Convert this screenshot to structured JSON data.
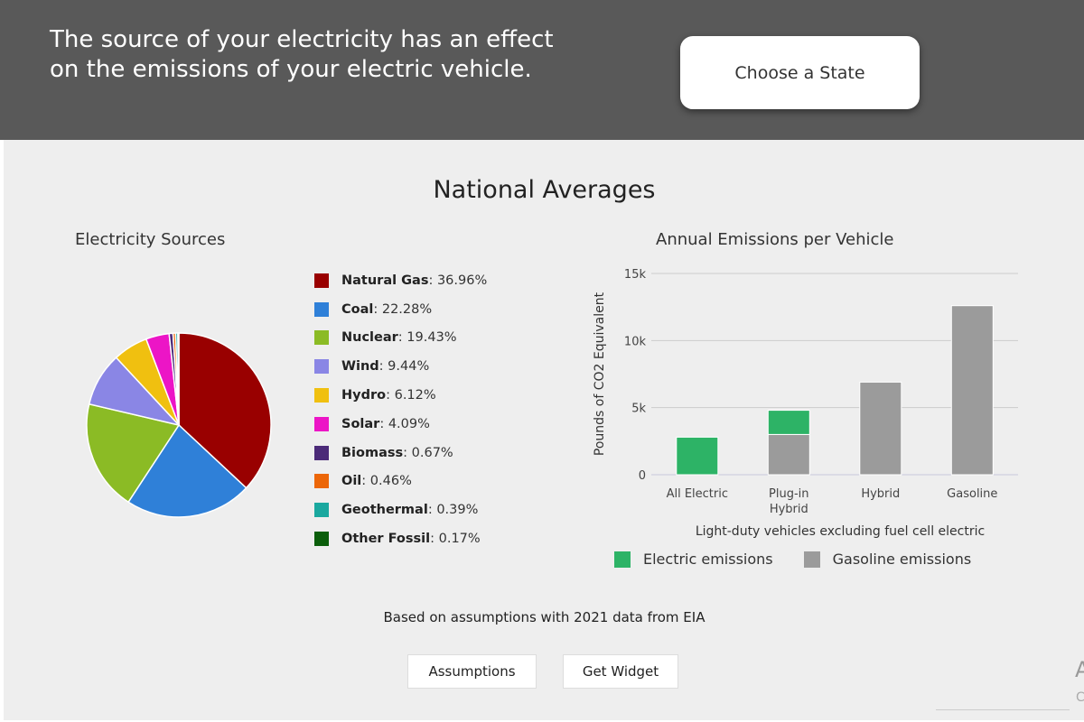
{
  "header": {
    "headline": "The source of your electricity has an effect on the emissions of your electric vehicle.",
    "choose_state_label": "Choose a State"
  },
  "main": {
    "title": "National Averages",
    "source_note": "Based on assumptions with 2021 data from EIA",
    "buttons": {
      "assumptions": "Assumptions",
      "get_widget": "Get Widget"
    }
  },
  "edge_fragments": {
    "letter_a": "A",
    "letter_c": "C"
  },
  "chart_data": [
    {
      "type": "pie",
      "title": "Electricity Sources",
      "slices": [
        {
          "label": "Natural Gas",
          "value": 36.96,
          "display": "36.96%",
          "color": "#990000"
        },
        {
          "label": "Coal",
          "value": 22.28,
          "display": "22.28%",
          "color": "#2f80d8"
        },
        {
          "label": "Nuclear",
          "value": 19.43,
          "display": "19.43%",
          "color": "#8bbb25"
        },
        {
          "label": "Wind",
          "value": 9.44,
          "display": "9.44%",
          "color": "#8a86e5"
        },
        {
          "label": "Hydro",
          "value": 6.12,
          "display": "6.12%",
          "color": "#f0c010"
        },
        {
          "label": "Solar",
          "value": 4.09,
          "display": "4.09%",
          "color": "#ec15c6"
        },
        {
          "label": "Biomass",
          "value": 0.67,
          "display": "0.67%",
          "color": "#4b2a78"
        },
        {
          "label": "Oil",
          "value": 0.46,
          "display": "0.46%",
          "color": "#ec6608"
        },
        {
          "label": "Geothermal",
          "value": 0.39,
          "display": "0.39%",
          "color": "#1aa89f"
        },
        {
          "label": "Other Fossil",
          "value": 0.17,
          "display": "0.17%",
          "color": "#0b5e0b"
        }
      ]
    },
    {
      "type": "bar",
      "stacked": true,
      "title": "Annual Emissions per Vehicle",
      "ylabel": "Pounds of CO2 Equivalent",
      "xlabel": "Light-duty vehicles excluding fuel cell electric",
      "categories": [
        "All Electric",
        "Plug-in Hybrid",
        "Hybrid",
        "Gasoline"
      ],
      "ylim": [
        0,
        15000
      ],
      "yticks": [
        0,
        5000,
        10000,
        15000
      ],
      "ytick_labels": [
        "0",
        "5k",
        "10k",
        "15k"
      ],
      "grid": true,
      "legend_position": "bottom",
      "series": [
        {
          "name": "Electric emissions",
          "color": "#2db366",
          "values": [
            2800,
            1800,
            0,
            0
          ]
        },
        {
          "name": "Gasoline emissions",
          "color": "#9b9b9b",
          "values": [
            0,
            3000,
            6900,
            12600
          ]
        }
      ]
    }
  ]
}
